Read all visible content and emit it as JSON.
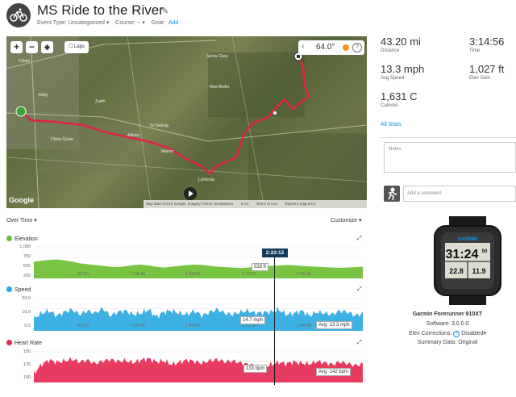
{
  "header": {
    "title": "MS Ride to the River",
    "event_type": "Event Type: Uncategorized",
    "course": "Course: --",
    "gear_label": "Gear:",
    "gear_add": "Add"
  },
  "map": {
    "laps_label": "Laps",
    "weather_temp": "64.0°",
    "help_label": "?",
    "attribution": "Map data ©2015 Google, Imagery ©2015 TerraMetrics",
    "scale": "5 km",
    "terms": "Terms of Use",
    "report": "Report a map error",
    "google": "Google",
    "places": [
      "Santa Clara",
      "Kirby",
      "New Berlin",
      "St Hedwig",
      "China Grove",
      "Marion",
      "Zuehl",
      "LaVernia",
      "Adkins",
      "Cibolo"
    ],
    "accent_route": "#e0234a"
  },
  "stats": {
    "distance": {
      "value": "43.20 mi",
      "label": "Distance"
    },
    "time": {
      "value": "3:14:56",
      "label": "Time"
    },
    "avg_speed": {
      "value": "13.3 mph",
      "label": "Avg Speed"
    },
    "elev_gain": {
      "value": "1,027 ft",
      "label": "Elev Gain"
    },
    "calories": {
      "value": "1,631 C",
      "label": "Calories"
    },
    "all_stats_link": "All Stats"
  },
  "notes": {
    "placeholder": "Notes"
  },
  "comment": {
    "placeholder": "Add a comment."
  },
  "over_time": {
    "label": "Over Time",
    "customize": "Customize",
    "cursor_time": "2:22:12"
  },
  "chart_data": [
    {
      "type": "area",
      "title": "Elevation",
      "color": "#6abf2f",
      "y_ticks": [
        "1,000",
        "750",
        "500",
        "250"
      ],
      "x_ticks": [
        "33:20",
        "1:06:40",
        "1:40:00",
        "2:13:20",
        "2:46:40"
      ],
      "ylim": [
        250,
        1000
      ],
      "values": [
        640,
        660,
        680,
        690,
        670,
        640,
        600,
        580,
        560,
        540,
        520,
        510,
        530,
        560,
        570,
        550,
        520,
        500,
        520,
        540,
        560,
        570,
        560,
        540,
        520,
        510,
        500,
        490,
        500,
        520,
        533,
        540,
        550,
        560,
        555,
        540,
        530,
        520,
        510,
        500,
        495,
        500,
        510,
        520
      ],
      "tooltip": "533 ft"
    },
    {
      "type": "area",
      "title": "Speed",
      "color": "#29a9e1",
      "y_ticks": [
        "20.0",
        "10.0",
        "0.0"
      ],
      "x_ticks": [
        "33:20",
        "1:06:40",
        "1:40:00",
        "2:13:20",
        "2:46:40"
      ],
      "ylim": [
        0,
        27
      ],
      "values": [
        10,
        14,
        16,
        12,
        15,
        17,
        13,
        16,
        14,
        18,
        12,
        15,
        16,
        13,
        14,
        17,
        11,
        15,
        16,
        14,
        13,
        16,
        12,
        15,
        17,
        14,
        13,
        15,
        16,
        14,
        14.7,
        15,
        17,
        13,
        14,
        16,
        12,
        15,
        14,
        13,
        16,
        15,
        12,
        14
      ],
      "tooltip": "14.7 mph",
      "avg_tooltip": "Avg: 13.3 mph"
    },
    {
      "type": "area",
      "title": "Heart Rate",
      "color": "#e6264f",
      "y_ticks": [
        "150",
        "125",
        "100"
      ],
      "x_ticks": [
        "33:20",
        "1:06:40",
        "1:40:00",
        "2:13:20",
        "2:46:40"
      ],
      "ylim": [
        100,
        172
      ],
      "values": [
        120,
        140,
        150,
        145,
        148,
        152,
        146,
        150,
        142,
        148,
        151,
        147,
        149,
        144,
        150,
        153,
        146,
        148,
        140,
        145,
        150,
        147,
        143,
        149,
        151,
        146,
        148,
        144,
        140,
        138,
        133,
        140,
        145,
        142,
        146,
        143,
        141,
        147,
        144,
        140,
        146,
        142,
        138,
        141
      ],
      "tooltip": "133 bpm",
      "avg_tooltip": "Avg: 142 bpm"
    }
  ],
  "device": {
    "name": "Garmin Forerunner 910XT",
    "software": "Software: 3.0.0.0",
    "elev_corrections_label": "Elev Corrections",
    "elev_corrections_value": "Disabled",
    "summary": "Summary Data: Original",
    "screen_top": "31:24",
    "screen_top_small": "50",
    "screen_left": "22.8",
    "screen_right": "11.9",
    "brand": "GARMIN"
  }
}
